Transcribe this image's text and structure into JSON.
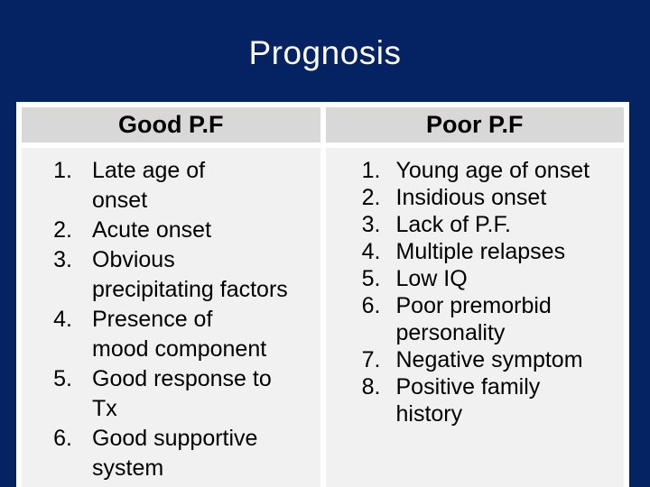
{
  "slide_title": "Prognosis",
  "table": {
    "columns": [
      {
        "header": "Good P.F",
        "items": [
          "Late age of\nonset",
          "Acute onset",
          "Obvious\nprecipitating factors",
          "Presence of\nmood component",
          "Good response to\nTx",
          "Good supportive\nsystem"
        ]
      },
      {
        "header": "Poor P.F",
        "items": [
          "Young age of onset",
          "Insidious onset",
          "Lack of P.F.",
          "Multiple relapses",
          "Low IQ",
          "Poor premorbid\npersonality",
          "Negative symptom",
          "Positive family\nhistory"
        ]
      }
    ]
  },
  "colors": {
    "background": "#052262",
    "panel": "#ffffff",
    "header_bg": "#d8d8d8",
    "body_bg": "#f1f1f1",
    "title_text": "#fdfdf8",
    "body_text": "#000000"
  }
}
